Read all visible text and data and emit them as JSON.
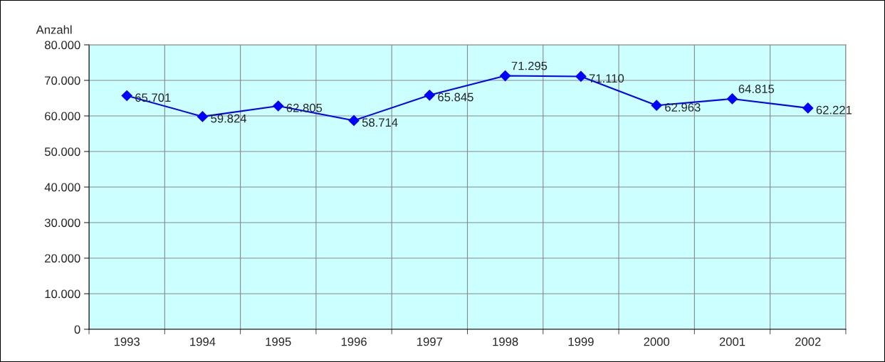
{
  "chart_data": {
    "type": "line",
    "ylabel": "Anzahl",
    "categories": [
      "1993",
      "1994",
      "1995",
      "1996",
      "1997",
      "1998",
      "1999",
      "2000",
      "2001",
      "2002"
    ],
    "series": [
      {
        "color": "#0000ff",
        "values": [
          65701,
          59824,
          62805,
          58714,
          65845,
          71295,
          71110,
          62963,
          64815,
          62221
        ],
        "value_labels": [
          "65.701",
          "59.824",
          "62.805",
          "58.714",
          "65.845",
          "71.295",
          "71.110",
          "62.963",
          "64.815",
          "62.221"
        ]
      }
    ],
    "ylim": [
      0,
      80000
    ],
    "yticks": [
      0,
      {
        "value": 10000,
        "label": "10.000"
      },
      {
        "value": 20000,
        "label": "20.000"
      },
      {
        "value": 30000,
        "label": "30.000"
      },
      {
        "value": 40000,
        "label": "40.000"
      },
      {
        "value": 50000,
        "label": "50.000"
      },
      {
        "value": 60000,
        "label": "60.000"
      },
      {
        "value": 70000,
        "label": "70.000"
      },
      {
        "value": 80000,
        "label": "80.000"
      }
    ],
    "grid": true,
    "marker": "diamond",
    "line_style": "solid",
    "legend": false
  }
}
